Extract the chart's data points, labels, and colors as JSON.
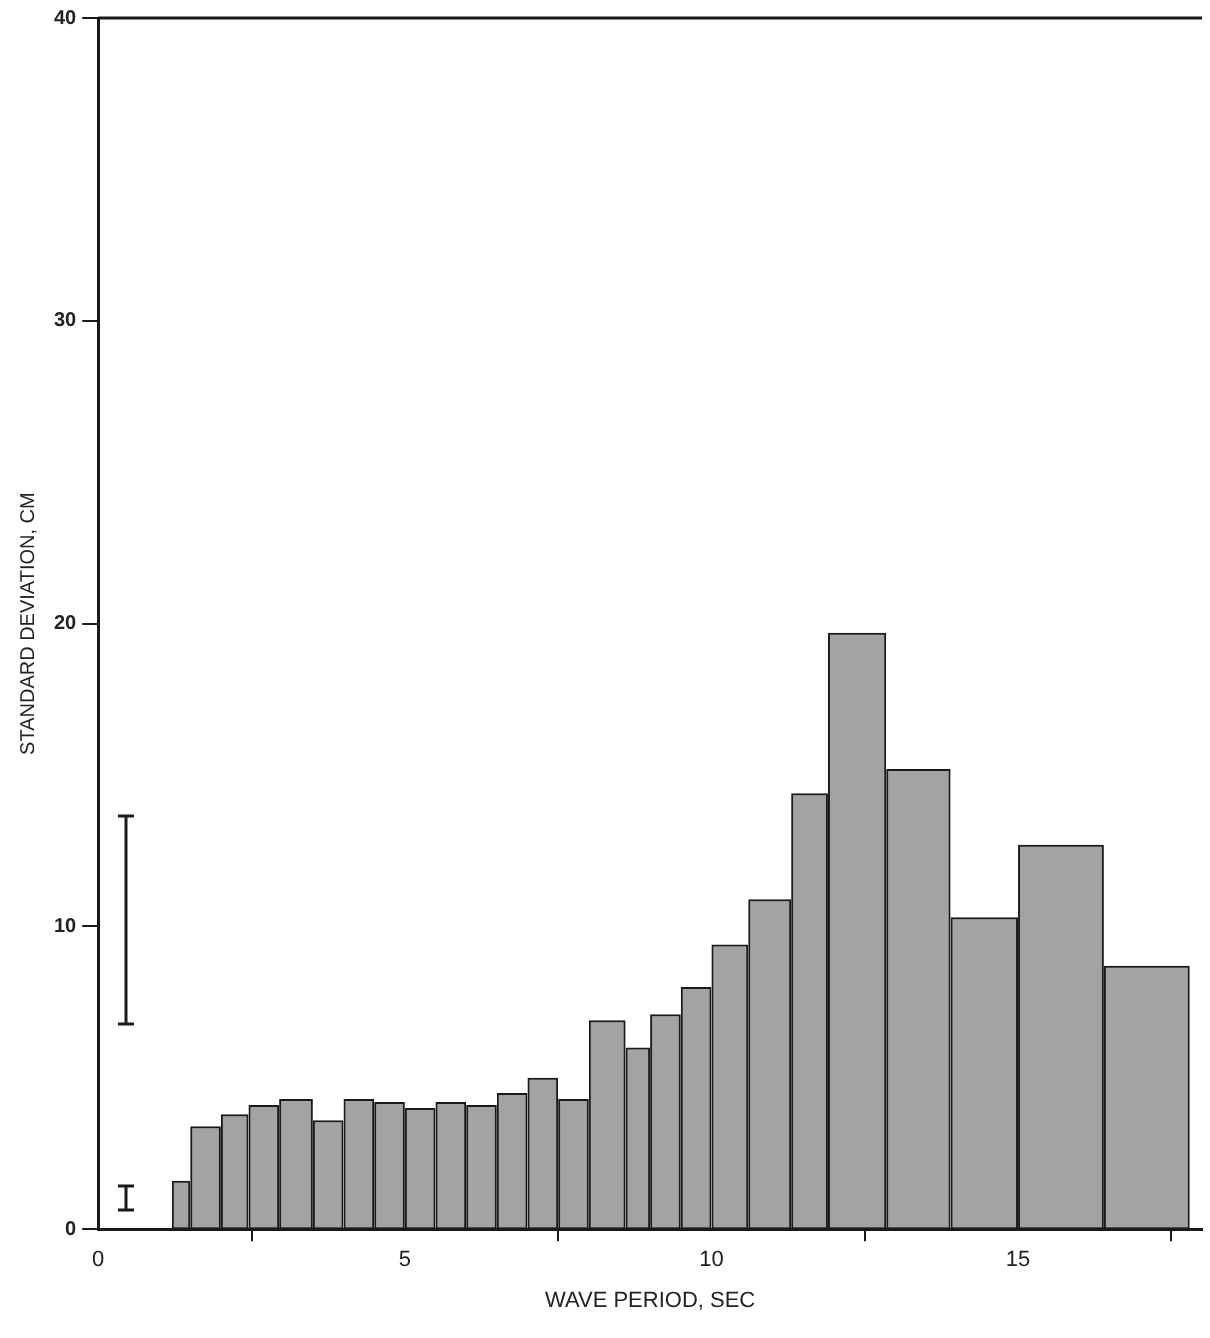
{
  "chart_data": {
    "type": "histogram",
    "xlabel": "WAVE PERIOD, SEC",
    "ylabel": "STANDARD DEVIATION, CM",
    "xlim": [
      0,
      18
    ],
    "xticks": [
      0,
      5,
      10,
      15
    ],
    "ylim": [
      0,
      40
    ],
    "yticks": [
      0,
      10,
      20,
      30,
      40
    ],
    "grid": false,
    "color": "#1a1a1a",
    "bins": [
      1.2,
      1.5,
      2.0,
      2.45,
      2.95,
      3.5,
      4.0,
      4.5,
      5.0,
      5.5,
      6.0,
      6.5,
      7.0,
      7.5,
      8.0,
      8.6,
      9.0,
      9.5,
      10.0,
      10.6,
      11.3,
      11.9,
      12.85,
      13.9,
      15.0,
      16.4,
      17.8
    ],
    "values": [
      1.6,
      3.4,
      3.8,
      4.1,
      4.3,
      3.6,
      4.3,
      4.2,
      4.0,
      4.2,
      4.1,
      4.5,
      5.0,
      4.3,
      6.9,
      6.0,
      7.1,
      8.0,
      9.4,
      10.9,
      14.4,
      19.7,
      15.2,
      10.3,
      12.7,
      8.7
    ]
  }
}
